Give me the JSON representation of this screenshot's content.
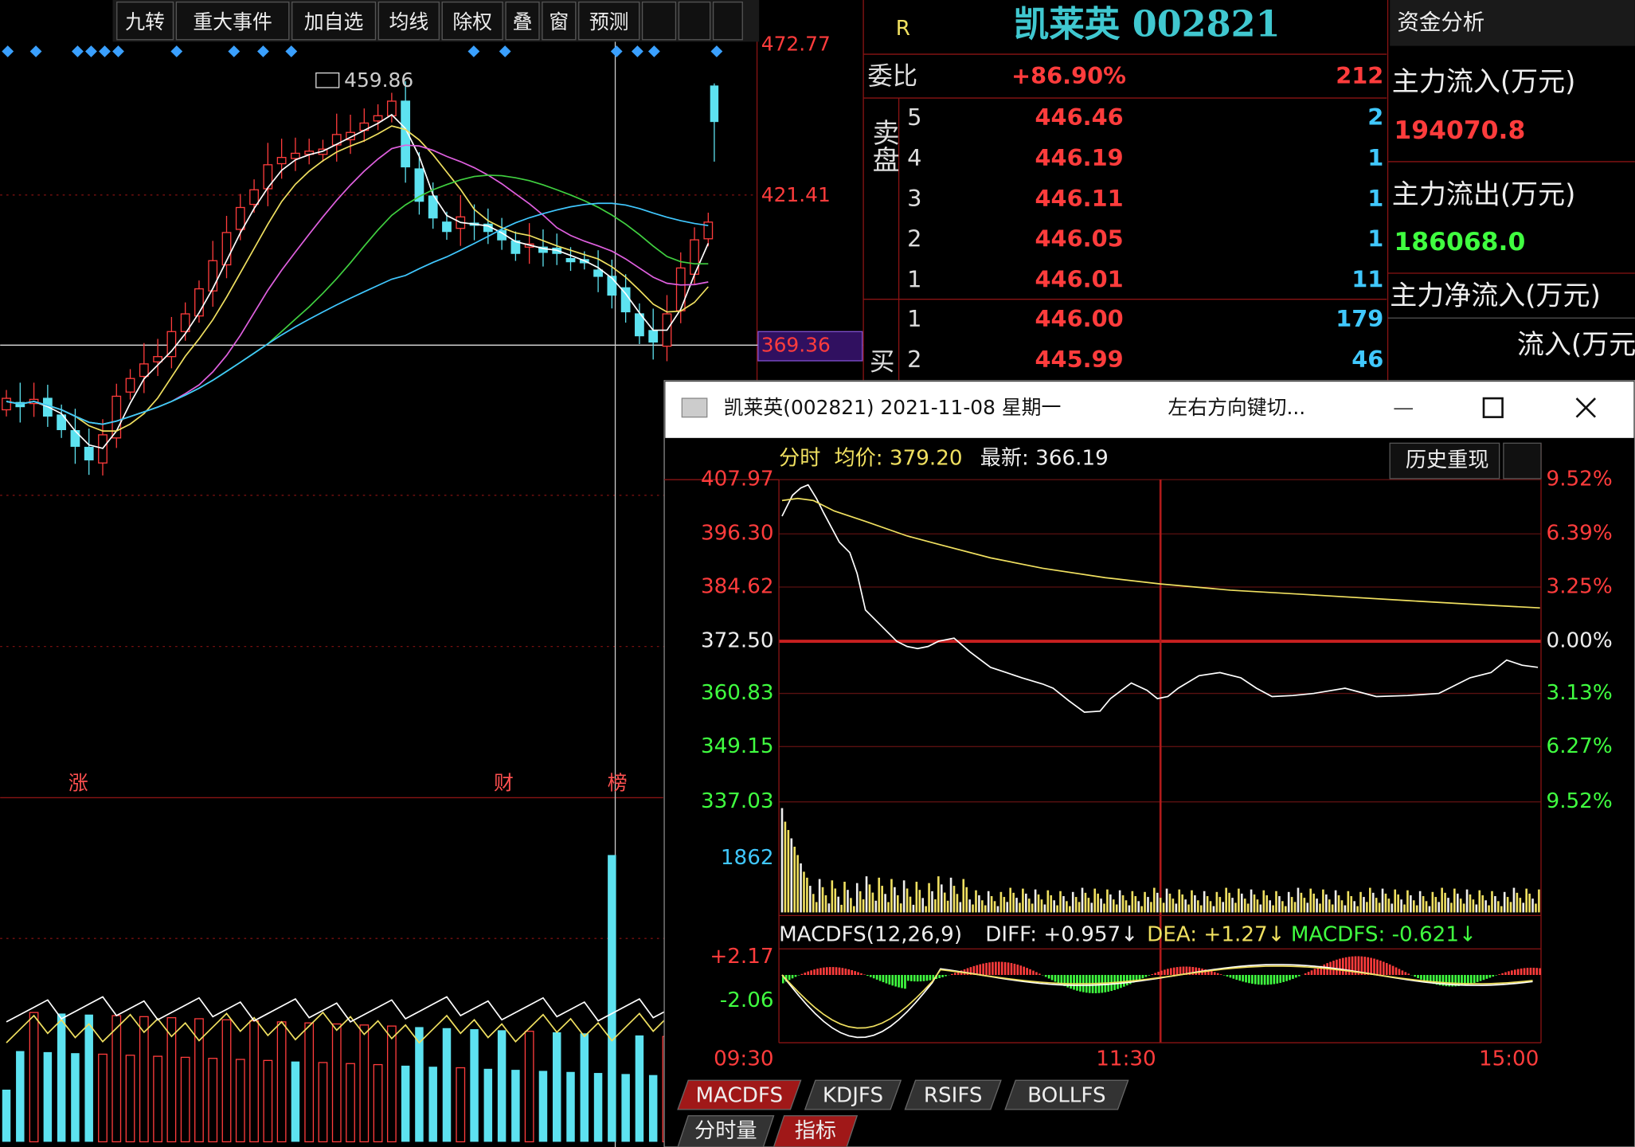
{
  "toolbar": {
    "buttons": [
      "九转",
      "重大事件",
      "加自选",
      "均线",
      "除权",
      "叠",
      "窗",
      "预测"
    ]
  },
  "kline": {
    "price_labels": [
      "472.77",
      "421.41",
      "369.36"
    ],
    "high_label": "459.86",
    "event_markers": [
      "涨",
      "财",
      "榜"
    ]
  },
  "quote": {
    "flag": "R",
    "title": "凯莱英 002821",
    "ratio_label": "委比",
    "ratio": "+86.90%",
    "ratio_diff": "212",
    "sell_label": "卖盘",
    "buy_label": "买",
    "sell": [
      [
        "5",
        "446.46",
        "2"
      ],
      [
        "4",
        "446.19",
        "1"
      ],
      [
        "3",
        "446.11",
        "1"
      ],
      [
        "2",
        "446.05",
        "1"
      ],
      [
        "1",
        "446.01",
        "11"
      ]
    ],
    "buy": [
      [
        "1",
        "446.00",
        "179"
      ],
      [
        "2",
        "445.99",
        "46"
      ]
    ]
  },
  "fund": {
    "title": "资金分析",
    "items": [
      {
        "label": "主力流入(万元)",
        "value": "194070.8"
      },
      {
        "label": "主力流出(万元)",
        "value": "186068.0"
      },
      {
        "label": "主力净流入(万元)"
      }
    ],
    "extra": "流入(万元"
  },
  "popup": {
    "title": "凯莱英(002821) 2021-11-08 星期一",
    "hint": "左右方向键切...",
    "legend": [
      "分时",
      "均价: 379.20",
      "最新: 366.19"
    ],
    "history_button": "历史重现",
    "price_ticks": [
      "407.97",
      "396.30",
      "384.62",
      "372.50",
      "360.83",
      "349.15",
      "337.03"
    ],
    "pct_ticks": [
      "9.52%",
      "6.39%",
      "3.25%",
      "0.00%",
      "3.13%",
      "6.27%",
      "9.52%"
    ],
    "volume_max": "1862",
    "macd_legend": [
      "MACDFS(12,26,9)",
      "DIFF: +0.957↓",
      "DEA: +1.27↓",
      "MACDFS: -0.621↓"
    ],
    "macd_ticks": [
      "+2.17",
      "-2.06"
    ],
    "time_ticks": [
      "09:30",
      "11:30",
      "15:00"
    ],
    "indicator_tabs": [
      "MACDFS",
      "KDJFS",
      "RSIFS",
      "BOLLFS"
    ],
    "view_tabs": [
      "分时量",
      "指标"
    ]
  }
}
